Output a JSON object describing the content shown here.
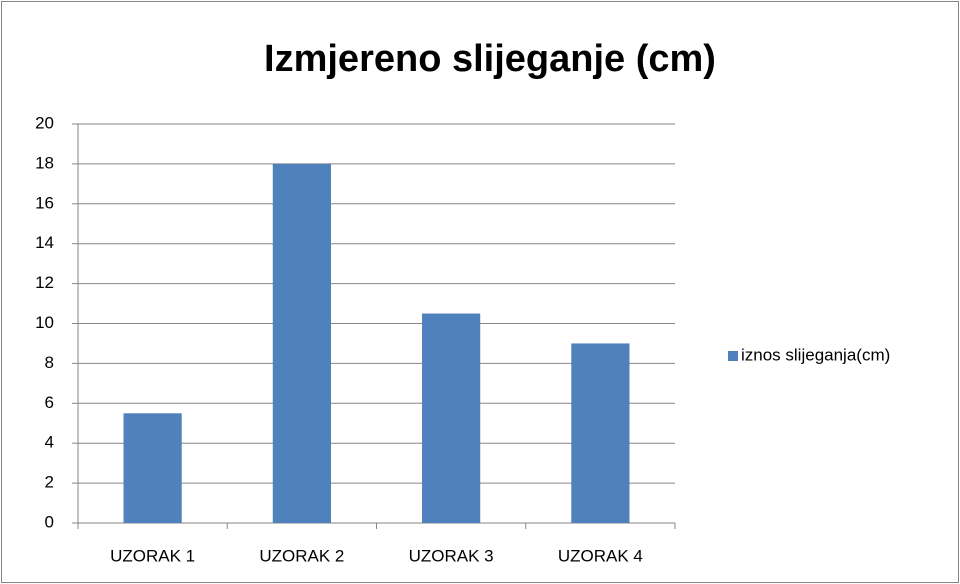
{
  "chart_data": {
    "type": "bar",
    "title": "Izmjereno slijeganje (cm)",
    "categories": [
      "UZORAK 1",
      "UZORAK 2",
      "UZORAK 3",
      "UZORAK 4"
    ],
    "series": [
      {
        "name": "iznos slijeganja(cm)",
        "color": "#4f81bd",
        "values": [
          5.5,
          18,
          10.5,
          9
        ]
      }
    ],
    "ylim": [
      0,
      20
    ],
    "yticks": [
      0,
      2,
      4,
      6,
      8,
      10,
      12,
      14,
      16,
      18,
      20
    ],
    "grid": true,
    "legend": "right"
  }
}
